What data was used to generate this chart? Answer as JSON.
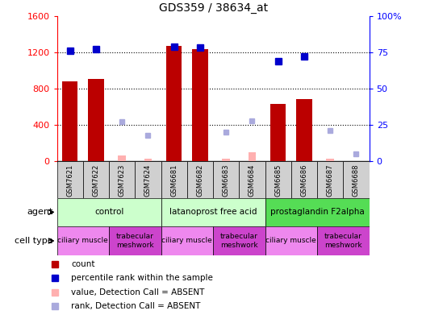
{
  "title": "GDS359 / 38634_at",
  "samples": [
    "GSM7621",
    "GSM7622",
    "GSM7623",
    "GSM7624",
    "GSM6681",
    "GSM6682",
    "GSM6683",
    "GSM6684",
    "GSM6685",
    "GSM6686",
    "GSM6687",
    "GSM6688"
  ],
  "count_values": [
    880,
    910,
    null,
    null,
    1270,
    1230,
    null,
    null,
    630,
    680,
    null,
    null
  ],
  "count_absent": [
    null,
    null,
    60,
    30,
    null,
    null,
    30,
    100,
    null,
    null,
    30,
    null
  ],
  "rank_present": [
    76,
    77,
    null,
    null,
    79,
    78,
    null,
    null,
    69,
    72,
    null,
    null
  ],
  "rank_absent": [
    null,
    null,
    27,
    18,
    null,
    null,
    20,
    28,
    null,
    null,
    21,
    5
  ],
  "ylim_left": [
    0,
    1600
  ],
  "ylim_right": [
    0,
    100
  ],
  "yticks_left": [
    0,
    400,
    800,
    1200,
    1600
  ],
  "yticks_right": [
    0,
    25,
    50,
    75,
    100
  ],
  "bar_color": "#bb0000",
  "bar_absent_color": "#ffb0b0",
  "rank_present_color": "#0000cc",
  "rank_absent_color": "#aaaadd",
  "agent_data": [
    {
      "label": "control",
      "start": 0,
      "end": 4,
      "color": "#ccffcc"
    },
    {
      "label": "latanoprost free acid",
      "start": 4,
      "end": 8,
      "color": "#ccffcc"
    },
    {
      "label": "prostaglandin F2alpha",
      "start": 8,
      "end": 12,
      "color": "#55dd55"
    }
  ],
  "cell_data": [
    {
      "label": "ciliary muscle",
      "start": 0,
      "end": 2,
      "color": "#ee88ee"
    },
    {
      "label": "trabecular\nmeshwork",
      "start": 2,
      "end": 4,
      "color": "#cc44cc"
    },
    {
      "label": "ciliary muscle",
      "start": 4,
      "end": 6,
      "color": "#ee88ee"
    },
    {
      "label": "trabecular\nmeshwork",
      "start": 6,
      "end": 8,
      "color": "#cc44cc"
    },
    {
      "label": "ciliary muscle",
      "start": 8,
      "end": 10,
      "color": "#ee88ee"
    },
    {
      "label": "trabecular\nmeshwork",
      "start": 10,
      "end": 12,
      "color": "#cc44cc"
    }
  ]
}
